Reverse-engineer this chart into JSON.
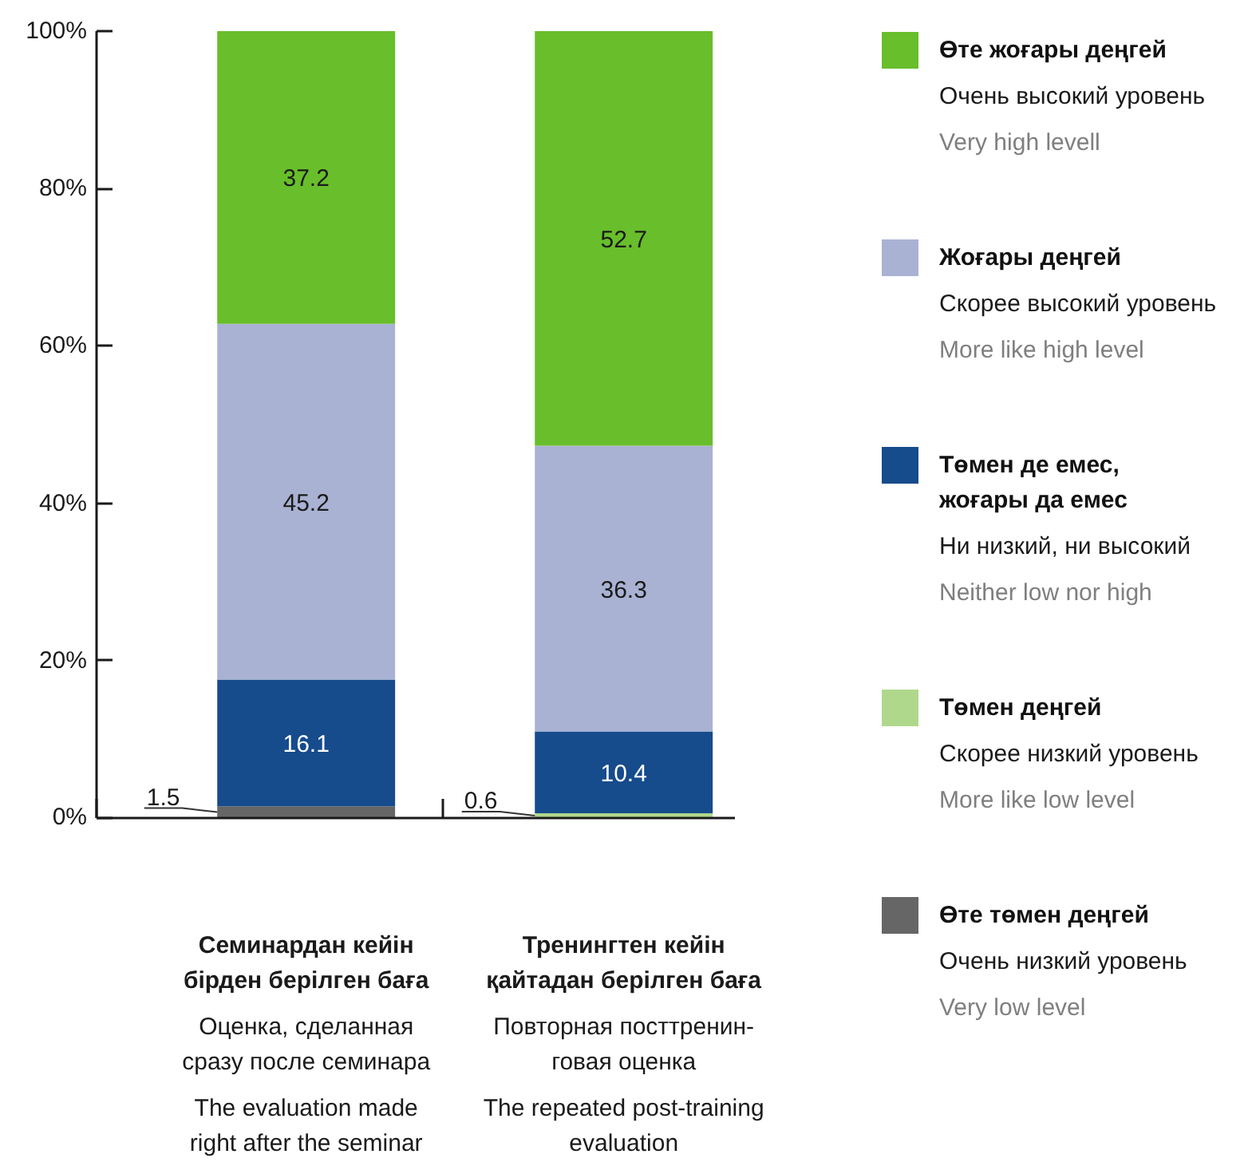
{
  "chart_data": {
    "type": "bar",
    "stacked": true,
    "categories": [
      "Семинардан кейін\nбірден берілген баға\n\nОценка, сделанная\nсразу после семинара\n\nThe evaluation made\nright after the seminar",
      "Тренингтен кейін\nқайтадан берілген баға\n\nПовторная посттренин-\nговая оценка\n\nThe repeated post-training\nevaluation"
    ],
    "series": [
      {
        "name": "Өте төмен деңгей\n\nОчень низкий уровень\n\nVery low level",
        "color": "#666666",
        "values": [
          1.5,
          null
        ]
      },
      {
        "name": "Төмен деңгей\n\nСкорее низкий уровень\n\nMore like low level",
        "color": "#b0d88c",
        "values": [
          null,
          0.6
        ]
      },
      {
        "name": "Төмен де емес,\nжоғары да емес\n\nНи низкий, ни высокий\n\nNeither low nor high",
        "color": "#164b8c",
        "values": [
          16.1,
          10.4
        ]
      },
      {
        "name": "Жоғары деңгей\n\nСкорее высокий уровень\n\nMore like high level",
        "color": "#a9b2d3",
        "values": [
          45.2,
          36.3
        ]
      },
      {
        "name": "Өте жоғары деңгей\n\nОчень высокий уровень\n\nVery high levell",
        "color": "#68be2b",
        "values": [
          37.2,
          52.7
        ]
      }
    ],
    "ylim": [
      0,
      100
    ],
    "yticks": [
      {
        "value": 0,
        "label": "0%"
      },
      {
        "value": 20,
        "label": "20%"
      },
      {
        "value": 40,
        "label": "40%"
      },
      {
        "value": 60,
        "label": "60%"
      },
      {
        "value": 80,
        "label": "80%"
      },
      {
        "value": 100,
        "label": "100%"
      }
    ],
    "data_labels": true,
    "grid": false,
    "legend": "right"
  }
}
